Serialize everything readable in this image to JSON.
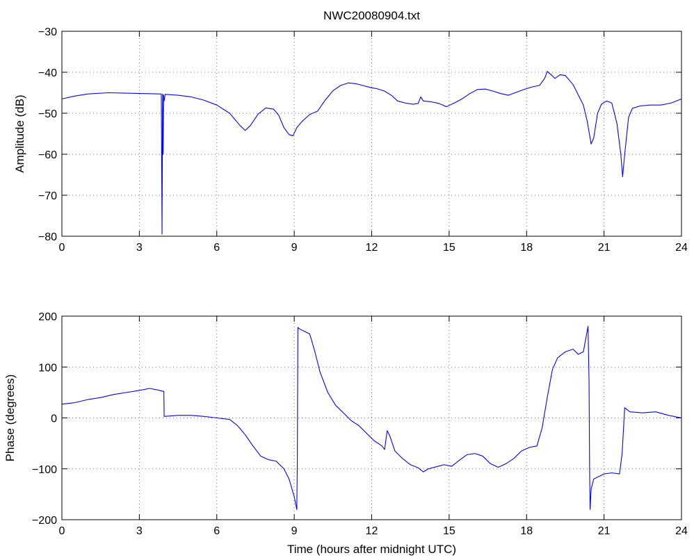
{
  "chart_data": [
    {
      "type": "line",
      "title": "NWC20080904.txt",
      "xlabel": "",
      "ylabel": "Amplitude (dB)",
      "xlim": [
        0,
        24
      ],
      "ylim": [
        -80,
        -30
      ],
      "xticks": [
        "0",
        "3",
        "6",
        "9",
        "12",
        "15",
        "18",
        "21",
        "24"
      ],
      "yticks": [
        "−30",
        "−40",
        "−50",
        "−60",
        "−70",
        "−80"
      ],
      "grid": true,
      "colors": {
        "series": "#0000ff"
      },
      "series": [
        {
          "x": [
            0,
            0.5,
            1,
            1.8,
            2.5,
            3.2,
            3.85,
            3.88,
            3.9,
            3.92,
            3.94,
            3.96,
            4.0,
            4.5,
            5,
            5.5,
            6,
            6.5,
            6.9,
            7.1,
            7.3,
            7.6,
            7.9,
            8.2,
            8.4,
            8.6,
            8.8,
            8.95,
            9.1,
            9.3,
            9.6,
            9.9,
            10.2,
            10.5,
            10.8,
            11.1,
            11.4,
            11.7,
            12.0,
            12.2,
            12.5,
            12.8,
            13.0,
            13.3,
            13.6,
            13.8,
            13.9,
            14.0,
            14.3,
            14.6,
            14.9,
            15.2,
            15.5,
            15.8,
            16.1,
            16.4,
            16.7,
            17.0,
            17.3,
            17.6,
            17.9,
            18.2,
            18.5,
            18.7,
            18.8,
            18.95,
            19.1,
            19.3,
            19.5,
            19.8,
            20.0,
            20.2,
            20.35,
            20.5,
            20.6,
            20.75,
            20.9,
            21.1,
            21.3,
            21.5,
            21.65,
            21.72,
            21.8,
            21.95,
            22.1,
            22.4,
            22.8,
            23.2,
            23.6,
            24
          ],
          "values": [
            -46.5,
            -45.8,
            -45.3,
            -45.0,
            -45.1,
            -45.2,
            -45.3,
            -79.5,
            -45.3,
            -60.0,
            -45.5,
            -47.0,
            -45.4,
            -45.6,
            -46.0,
            -46.8,
            -48.0,
            -50.0,
            -53.0,
            -54.2,
            -53.0,
            -50.2,
            -48.7,
            -49.0,
            -50.5,
            -53.5,
            -55.2,
            -55.5,
            -53.5,
            -52.0,
            -50.3,
            -49.5,
            -46.8,
            -44.5,
            -43.2,
            -42.6,
            -42.8,
            -43.3,
            -43.8,
            -44.0,
            -44.6,
            -45.8,
            -47.0,
            -47.5,
            -47.8,
            -47.6,
            -46.0,
            -47.0,
            -47.2,
            -47.6,
            -48.4,
            -47.5,
            -46.5,
            -45.2,
            -44.2,
            -44.1,
            -44.6,
            -45.2,
            -45.6,
            -44.9,
            -44.2,
            -43.6,
            -43.2,
            -41.5,
            -39.8,
            -40.6,
            -41.5,
            -40.6,
            -40.8,
            -43.0,
            -45.5,
            -48.0,
            -52.0,
            -57.5,
            -56.0,
            -50.0,
            -47.8,
            -47.0,
            -47.5,
            -52.5,
            -60.0,
            -65.5,
            -60.0,
            -51.0,
            -48.8,
            -48.2,
            -48.0,
            -48.0,
            -47.5,
            -46.5
          ]
        }
      ]
    },
    {
      "type": "line",
      "title": "",
      "xlabel": "Time (hours after midnight UTC)",
      "ylabel": "Phase (degrees)",
      "xlim": [
        0,
        24
      ],
      "ylim": [
        -200,
        200
      ],
      "xticks": [
        "0",
        "3",
        "6",
        "9",
        "12",
        "15",
        "18",
        "21",
        "24"
      ],
      "yticks": [
        "200",
        "100",
        "0",
        "−100",
        "−200"
      ],
      "grid": true,
      "colors": {
        "series": "#0000ff"
      },
      "series": [
        {
          "x": [
            0,
            0.5,
            1.0,
            1.5,
            2.0,
            2.5,
            3.0,
            3.4,
            3.7,
            3.95,
            3.96,
            4.5,
            5.0,
            5.5,
            6.0,
            6.5,
            6.8,
            7.1,
            7.4,
            7.7,
            8.0,
            8.3,
            8.6,
            8.8,
            9.0,
            9.1,
            9.12,
            9.14,
            9.2,
            9.4,
            9.6,
            9.8,
            10.0,
            10.3,
            10.6,
            10.9,
            11.2,
            11.5,
            11.8,
            12.1,
            12.4,
            12.5,
            12.6,
            12.7,
            12.9,
            13.2,
            13.5,
            13.8,
            14.0,
            14.2,
            14.5,
            14.8,
            15.1,
            15.4,
            15.7,
            16.0,
            16.3,
            16.6,
            16.9,
            17.2,
            17.5,
            17.8,
            18.1,
            18.4,
            18.6,
            18.8,
            19.0,
            19.2,
            19.5,
            19.8,
            20.0,
            20.2,
            20.38,
            20.42,
            20.44,
            20.46,
            20.5,
            20.6,
            20.8,
            21.0,
            21.3,
            21.6,
            21.7,
            21.8,
            22.0,
            22.5,
            23.0,
            23.5,
            24.0
          ],
          "values": [
            27,
            30,
            36,
            40,
            46,
            50,
            54,
            58,
            55,
            52,
            3,
            5,
            5,
            3,
            0,
            -3,
            -15,
            -33,
            -55,
            -75,
            -82,
            -85,
            -100,
            -120,
            -155,
            -180,
            -85,
            178,
            175,
            170,
            165,
            130,
            90,
            50,
            25,
            10,
            -5,
            -15,
            -30,
            -45,
            -55,
            -62,
            -25,
            -35,
            -65,
            -80,
            -92,
            -98,
            -106,
            -100,
            -96,
            -92,
            -95,
            -83,
            -72,
            -70,
            -75,
            -90,
            -97,
            -90,
            -80,
            -65,
            -58,
            -55,
            -20,
            40,
            95,
            118,
            130,
            135,
            125,
            130,
            180,
            70,
            -100,
            -180,
            -140,
            -120,
            -115,
            -110,
            -108,
            -110,
            -70,
            20,
            12,
            10,
            12,
            5,
            0
          ]
        }
      ]
    }
  ]
}
